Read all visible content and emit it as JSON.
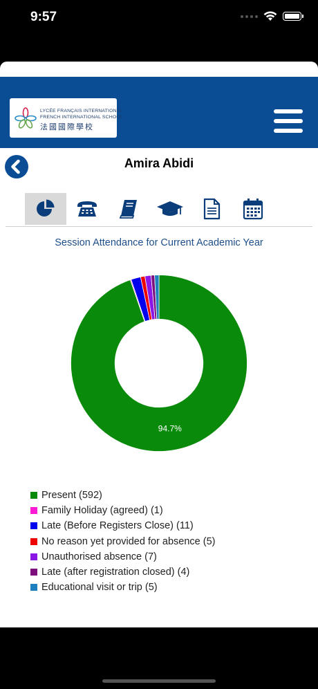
{
  "status_bar": {
    "time": "9:57"
  },
  "header": {
    "logo_line1": "LYCÉE FRANÇAIS INTERNATIONAL",
    "logo_line2": "FRENCH INTERNATIONAL SCHOOL",
    "logo_line3": "法國國際學校"
  },
  "student": {
    "name": "Amira Abidi"
  },
  "tabs": [
    {
      "icon": "pie-chart-icon",
      "active": true
    },
    {
      "icon": "telephone-icon",
      "active": false
    },
    {
      "icon": "book-icon",
      "active": false
    },
    {
      "icon": "graduation-cap-icon",
      "active": false
    },
    {
      "icon": "document-icon",
      "active": false
    },
    {
      "icon": "calendar-icon",
      "active": false
    }
  ],
  "section_title": "Session Attendance for Current Academic Year",
  "chart_data": {
    "type": "pie",
    "title": "",
    "slices": [
      {
        "label": "Present (592)",
        "value": 592,
        "color": "#0a8a0a"
      },
      {
        "label": "Family Holiday (agreed) (1)",
        "value": 1,
        "color": "#ff1bd6"
      },
      {
        "label": "Late (Before Registers Close) (11)",
        "value": 11,
        "color": "#0000ee"
      },
      {
        "label": "No reason yet provided for absence (5)",
        "value": 5,
        "color": "#ee0000"
      },
      {
        "label": "Unauthorised absence (7)",
        "value": 7,
        "color": "#8a17e6"
      },
      {
        "label": "Late (after registration closed) (4)",
        "value": 4,
        "color": "#7c0f7c"
      },
      {
        "label": "Educational visit or trip (5)",
        "value": 5,
        "color": "#1e7fbf"
      }
    ],
    "data_label": "94.7%",
    "inner_radius_ratio": 0.5,
    "legend_position": "bottom-left"
  }
}
